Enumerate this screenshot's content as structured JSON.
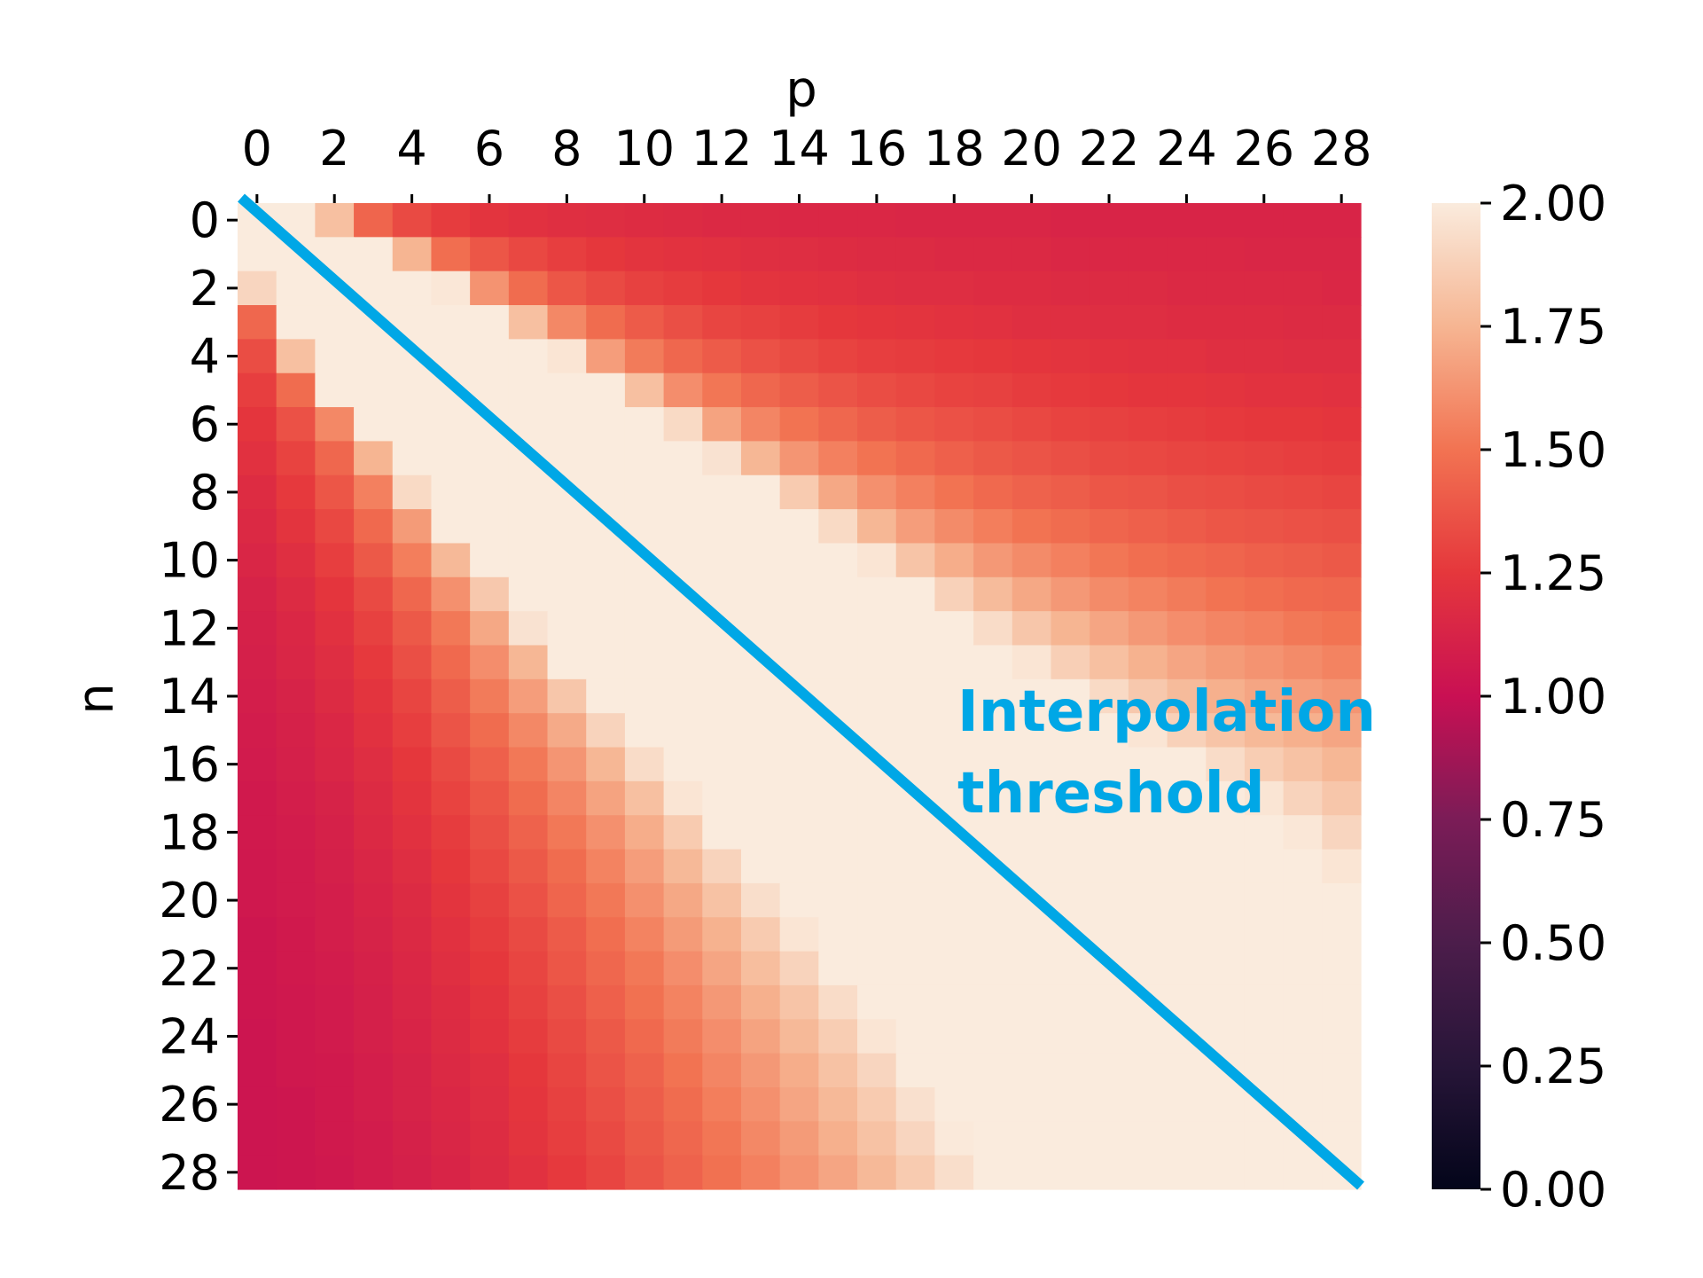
{
  "chart_data": {
    "type": "heatmap",
    "xlabel": "p",
    "ylabel": "n",
    "x_ticks": [
      "0",
      "2",
      "4",
      "6",
      "8",
      "10",
      "12",
      "14",
      "16",
      "18",
      "20",
      "22",
      "24",
      "26",
      "28"
    ],
    "y_ticks": [
      "0",
      "2",
      "4",
      "6",
      "8",
      "10",
      "12",
      "14",
      "16",
      "18",
      "20",
      "22",
      "24",
      "26",
      "28"
    ],
    "colorbar": {
      "range": [
        0.0,
        2.0
      ],
      "ticks": [
        "0.00",
        "0.25",
        "0.50",
        "0.75",
        "1.00",
        "1.25",
        "1.50",
        "1.75",
        "2.00"
      ],
      "colormap": "rocket"
    },
    "annotation": {
      "line1": "Interpolation",
      "line2": "threshold",
      "color": "#00A7E6"
    },
    "values": [
      [
        2.0,
        2.0,
        1.8,
        1.44,
        1.33,
        1.27,
        1.23,
        1.21,
        1.2,
        1.19,
        1.18,
        1.17,
        1.16,
        1.16,
        1.15,
        1.15,
        1.15,
        1.14,
        1.14,
        1.14,
        1.14,
        1.13,
        1.13,
        1.13,
        1.13,
        1.13,
        1.13,
        1.13,
        1.13
      ],
      [
        2.0,
        2.0,
        2.0,
        2.0,
        1.75,
        1.48,
        1.38,
        1.32,
        1.28,
        1.25,
        1.23,
        1.22,
        1.21,
        1.2,
        1.19,
        1.18,
        1.17,
        1.17,
        1.16,
        1.16,
        1.16,
        1.15,
        1.15,
        1.15,
        1.15,
        1.15,
        1.14,
        1.14,
        1.14
      ],
      [
        1.9,
        2.0,
        2.0,
        2.0,
        2.0,
        1.98,
        1.62,
        1.47,
        1.38,
        1.33,
        1.29,
        1.27,
        1.25,
        1.23,
        1.22,
        1.21,
        1.2,
        1.19,
        1.19,
        1.18,
        1.18,
        1.17,
        1.17,
        1.17,
        1.16,
        1.16,
        1.16,
        1.16,
        1.15
      ],
      [
        1.45,
        2.0,
        2.0,
        2.0,
        2.0,
        2.0,
        2.0,
        1.8,
        1.58,
        1.47,
        1.4,
        1.35,
        1.31,
        1.29,
        1.27,
        1.25,
        1.24,
        1.23,
        1.22,
        1.21,
        1.2,
        1.2,
        1.19,
        1.19,
        1.18,
        1.18,
        1.18,
        1.17,
        1.17
      ],
      [
        1.34,
        1.8,
        2.0,
        2.0,
        2.0,
        2.0,
        2.0,
        2.0,
        1.97,
        1.66,
        1.53,
        1.45,
        1.4,
        1.36,
        1.33,
        1.3,
        1.28,
        1.27,
        1.26,
        1.25,
        1.24,
        1.23,
        1.22,
        1.21,
        1.21,
        1.2,
        1.2,
        1.19,
        1.19
      ],
      [
        1.28,
        1.47,
        2.0,
        2.0,
        2.0,
        2.0,
        2.0,
        2.0,
        2.0,
        2.0,
        1.8,
        1.6,
        1.51,
        1.45,
        1.41,
        1.37,
        1.34,
        1.32,
        1.3,
        1.29,
        1.27,
        1.26,
        1.25,
        1.24,
        1.24,
        1.23,
        1.22,
        1.22,
        1.21
      ],
      [
        1.24,
        1.36,
        1.58,
        2.0,
        2.0,
        2.0,
        2.0,
        2.0,
        2.0,
        2.0,
        2.0,
        1.92,
        1.68,
        1.57,
        1.5,
        1.45,
        1.41,
        1.38,
        1.36,
        1.34,
        1.32,
        1.3,
        1.29,
        1.28,
        1.27,
        1.26,
        1.25,
        1.25,
        1.24
      ],
      [
        1.21,
        1.3,
        1.45,
        1.75,
        2.0,
        2.0,
        2.0,
        2.0,
        2.0,
        2.0,
        2.0,
        2.0,
        1.96,
        1.76,
        1.63,
        1.55,
        1.5,
        1.46,
        1.42,
        1.39,
        1.37,
        1.35,
        1.33,
        1.32,
        1.31,
        1.3,
        1.29,
        1.28,
        1.27
      ],
      [
        1.18,
        1.26,
        1.38,
        1.55,
        1.92,
        2.0,
        2.0,
        2.0,
        2.0,
        2.0,
        2.0,
        2.0,
        2.0,
        2.0,
        1.85,
        1.7,
        1.61,
        1.55,
        1.5,
        1.46,
        1.43,
        1.41,
        1.38,
        1.37,
        1.35,
        1.34,
        1.33,
        1.32,
        1.31
      ],
      [
        1.16,
        1.23,
        1.32,
        1.46,
        1.65,
        2.0,
        2.0,
        2.0,
        2.0,
        2.0,
        2.0,
        2.0,
        2.0,
        2.0,
        2.0,
        1.92,
        1.76,
        1.66,
        1.59,
        1.54,
        1.5,
        1.47,
        1.44,
        1.42,
        1.4,
        1.38,
        1.37,
        1.36,
        1.35
      ],
      [
        1.14,
        1.2,
        1.28,
        1.39,
        1.54,
        1.77,
        2.0,
        2.0,
        2.0,
        2.0,
        2.0,
        2.0,
        2.0,
        2.0,
        2.0,
        2.0,
        1.97,
        1.82,
        1.72,
        1.64,
        1.59,
        1.55,
        1.51,
        1.48,
        1.46,
        1.44,
        1.42,
        1.41,
        1.39
      ],
      [
        1.12,
        1.17,
        1.24,
        1.33,
        1.45,
        1.61,
        1.84,
        2.0,
        2.0,
        2.0,
        2.0,
        2.0,
        2.0,
        2.0,
        2.0,
        2.0,
        2.0,
        2.0,
        1.88,
        1.78,
        1.7,
        1.64,
        1.59,
        1.56,
        1.53,
        1.5,
        1.48,
        1.46,
        1.45
      ],
      [
        1.11,
        1.15,
        1.21,
        1.29,
        1.39,
        1.52,
        1.7,
        1.96,
        2.0,
        2.0,
        2.0,
        2.0,
        2.0,
        2.0,
        2.0,
        2.0,
        2.0,
        2.0,
        2.0,
        1.93,
        1.83,
        1.75,
        1.69,
        1.64,
        1.6,
        1.57,
        1.55,
        1.52,
        1.5
      ],
      [
        1.1,
        1.14,
        1.19,
        1.26,
        1.35,
        1.46,
        1.6,
        1.76,
        2.0,
        2.0,
        2.0,
        2.0,
        2.0,
        2.0,
        2.0,
        2.0,
        2.0,
        2.0,
        2.0,
        2.0,
        1.97,
        1.87,
        1.8,
        1.74,
        1.69,
        1.65,
        1.62,
        1.59,
        1.56
      ],
      [
        1.09,
        1.12,
        1.17,
        1.23,
        1.31,
        1.41,
        1.53,
        1.66,
        1.83,
        2.0,
        2.0,
        2.0,
        2.0,
        2.0,
        2.0,
        2.0,
        2.0,
        2.0,
        2.0,
        2.0,
        2.0,
        2.0,
        1.92,
        1.84,
        1.78,
        1.73,
        1.69,
        1.66,
        1.63
      ],
      [
        1.08,
        1.11,
        1.15,
        1.21,
        1.28,
        1.37,
        1.47,
        1.58,
        1.71,
        1.89,
        2.0,
        2.0,
        2.0,
        2.0,
        2.0,
        2.0,
        2.0,
        2.0,
        2.0,
        2.0,
        2.0,
        2.0,
        2.0,
        1.97,
        1.88,
        1.82,
        1.77,
        1.73,
        1.69
      ],
      [
        1.07,
        1.1,
        1.14,
        1.19,
        1.25,
        1.33,
        1.42,
        1.52,
        1.63,
        1.76,
        1.93,
        2.0,
        2.0,
        2.0,
        2.0,
        2.0,
        2.0,
        2.0,
        2.0,
        2.0,
        2.0,
        2.0,
        2.0,
        2.0,
        2.0,
        1.93,
        1.86,
        1.81,
        1.76
      ],
      [
        1.06,
        1.09,
        1.12,
        1.17,
        1.23,
        1.3,
        1.38,
        1.47,
        1.57,
        1.68,
        1.8,
        1.97,
        2.0,
        2.0,
        2.0,
        2.0,
        2.0,
        2.0,
        2.0,
        2.0,
        2.0,
        2.0,
        2.0,
        2.0,
        2.0,
        2.0,
        1.97,
        1.89,
        1.83
      ],
      [
        1.06,
        1.08,
        1.11,
        1.16,
        1.21,
        1.27,
        1.35,
        1.43,
        1.52,
        1.61,
        1.72,
        1.85,
        2.0,
        2.0,
        2.0,
        2.0,
        2.0,
        2.0,
        2.0,
        2.0,
        2.0,
        2.0,
        2.0,
        2.0,
        2.0,
        2.0,
        2.0,
        1.98,
        1.9
      ],
      [
        1.05,
        1.07,
        1.1,
        1.14,
        1.19,
        1.25,
        1.32,
        1.39,
        1.47,
        1.56,
        1.66,
        1.77,
        1.89,
        2.0,
        2.0,
        2.0,
        2.0,
        2.0,
        2.0,
        2.0,
        2.0,
        2.0,
        2.0,
        2.0,
        2.0,
        2.0,
        2.0,
        2.0,
        1.97
      ],
      [
        1.05,
        1.07,
        1.09,
        1.13,
        1.17,
        1.23,
        1.29,
        1.36,
        1.44,
        1.52,
        1.61,
        1.7,
        1.81,
        1.94,
        2.0,
        2.0,
        2.0,
        2.0,
        2.0,
        2.0,
        2.0,
        2.0,
        2.0,
        2.0,
        2.0,
        2.0,
        2.0,
        2.0,
        2.0
      ],
      [
        1.04,
        1.06,
        1.09,
        1.12,
        1.16,
        1.21,
        1.27,
        1.33,
        1.4,
        1.48,
        1.56,
        1.65,
        1.74,
        1.85,
        1.97,
        2.0,
        2.0,
        2.0,
        2.0,
        2.0,
        2.0,
        2.0,
        2.0,
        2.0,
        2.0,
        2.0,
        2.0,
        2.0,
        2.0
      ],
      [
        1.04,
        1.06,
        1.08,
        1.11,
        1.15,
        1.2,
        1.25,
        1.31,
        1.38,
        1.45,
        1.52,
        1.6,
        1.69,
        1.79,
        1.89,
        2.0,
        2.0,
        2.0,
        2.0,
        2.0,
        2.0,
        2.0,
        2.0,
        2.0,
        2.0,
        2.0,
        2.0,
        2.0,
        2.0
      ],
      [
        1.04,
        1.05,
        1.07,
        1.1,
        1.14,
        1.18,
        1.23,
        1.29,
        1.35,
        1.42,
        1.49,
        1.56,
        1.64,
        1.73,
        1.82,
        1.93,
        2.0,
        2.0,
        2.0,
        2.0,
        2.0,
        2.0,
        2.0,
        2.0,
        2.0,
        2.0,
        2.0,
        2.0,
        2.0
      ],
      [
        1.03,
        1.05,
        1.07,
        1.1,
        1.13,
        1.17,
        1.22,
        1.27,
        1.33,
        1.39,
        1.46,
        1.53,
        1.6,
        1.68,
        1.77,
        1.86,
        1.97,
        2.0,
        2.0,
        2.0,
        2.0,
        2.0,
        2.0,
        2.0,
        2.0,
        2.0,
        2.0,
        2.0,
        2.0
      ],
      [
        1.03,
        1.05,
        1.06,
        1.09,
        1.12,
        1.16,
        1.2,
        1.25,
        1.31,
        1.37,
        1.43,
        1.5,
        1.57,
        1.64,
        1.72,
        1.81,
        1.9,
        2.0,
        2.0,
        2.0,
        2.0,
        2.0,
        2.0,
        2.0,
        2.0,
        2.0,
        2.0,
        2.0,
        2.0
      ],
      [
        1.03,
        1.04,
        1.06,
        1.09,
        1.12,
        1.15,
        1.19,
        1.24,
        1.29,
        1.35,
        1.41,
        1.47,
        1.54,
        1.61,
        1.69,
        1.77,
        1.85,
        1.95,
        2.0,
        2.0,
        2.0,
        2.0,
        2.0,
        2.0,
        2.0,
        2.0,
        2.0,
        2.0,
        2.0
      ],
      [
        1.03,
        1.04,
        1.06,
        1.08,
        1.11,
        1.14,
        1.18,
        1.23,
        1.28,
        1.33,
        1.39,
        1.45,
        1.51,
        1.58,
        1.65,
        1.73,
        1.81,
        1.9,
        1.99,
        2.0,
        2.0,
        2.0,
        2.0,
        2.0,
        2.0,
        2.0,
        2.0,
        2.0,
        2.0
      ],
      [
        1.03,
        1.04,
        1.05,
        1.08,
        1.1,
        1.13,
        1.17,
        1.21,
        1.26,
        1.31,
        1.37,
        1.43,
        1.49,
        1.55,
        1.62,
        1.69,
        1.77,
        1.85,
        1.94,
        2.0,
        2.0,
        2.0,
        2.0,
        2.0,
        2.0,
        2.0,
        2.0,
        2.0,
        2.0
      ]
    ]
  }
}
